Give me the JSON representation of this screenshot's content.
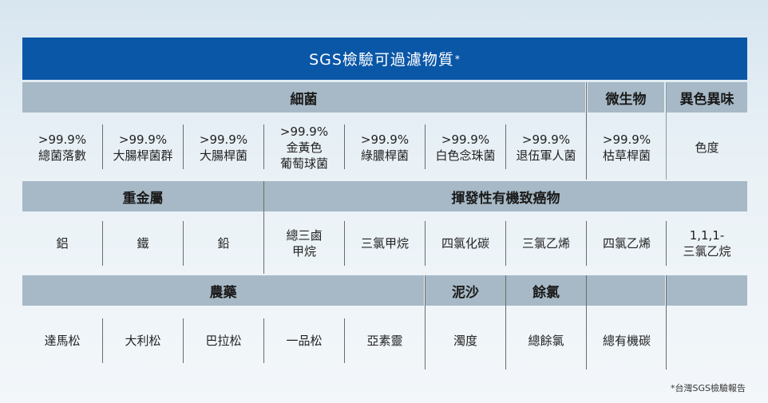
{
  "title": {
    "text": "SGS檢驗可過濾物質",
    "mark": "*"
  },
  "bacteria": {
    "header": "細菌",
    "items": [
      "&gt;99.9%\n總菌落數",
      ">99.9%\n大腸桿菌群",
      ">99.9%\n大腸桿菌",
      ">99.9%\n金黃色\n葡萄球菌",
      ">99.9%\n綠膿桿菌",
      ">99.9%\n白色念珠菌",
      ">99.9%\n退伍軍人菌"
    ]
  },
  "microbe": {
    "header": "微生物",
    "item": ">99.9%\n枯草桿菌"
  },
  "odor": {
    "header": "異色異味",
    "item": "色度"
  },
  "heavy_metals": {
    "header": "重金屬",
    "items": [
      "鋁",
      "鐵",
      "鉛"
    ]
  },
  "voc": {
    "header": "揮發性有機致癌物",
    "items": [
      "總三鹵\n甲烷",
      "三氯甲烷",
      "四氯化碳",
      "三氯乙烯",
      "四氯乙烯",
      "1,1,1-\n三氯乙烷"
    ]
  },
  "pesticides": {
    "header": "農藥",
    "items": [
      "達馬松",
      "大利松",
      "巴拉松",
      "一品松",
      "亞素靈"
    ]
  },
  "sediment": {
    "header": "泥沙",
    "item": "濁度"
  },
  "chlorine": {
    "header": "餘氯",
    "item": "總餘氯"
  },
  "organic": {
    "item": "總有機碳"
  },
  "footnote": "*台灣SGS檢驗報告"
}
